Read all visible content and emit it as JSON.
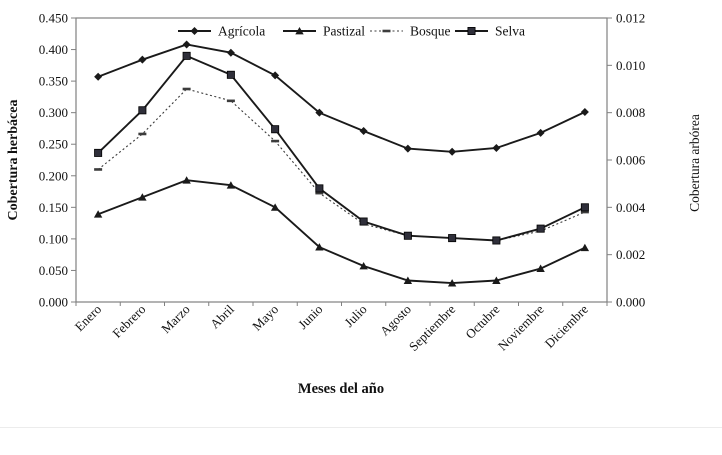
{
  "figure": {
    "background": "#ffffff",
    "axis_color": "#808080",
    "line_color": "#1a1a1a",
    "bosque_color": "#3c3c3c",
    "selva_fill": "#2f2f3a"
  },
  "chart_data": {
    "type": "line",
    "title": "",
    "xlabel": "Meses del año",
    "ylabel_left": "Cobertura herbácea",
    "ylabel_right": "Cobertura arbórea",
    "categories": [
      "Enero",
      "Febrero",
      "Marzo",
      "Abril",
      "Mayo",
      "Junio",
      "Julio",
      "Agosto",
      "Septiembre",
      "Octubre",
      "Noviembre",
      "Diciembre"
    ],
    "left_axis": {
      "min": 0.0,
      "max": 0.45,
      "step": 0.05,
      "tick_labels": [
        "0.450",
        "0.400",
        "0.350",
        "0.300",
        "0.250",
        "0.200",
        "0.150",
        "0.100",
        "0.050",
        "0.000"
      ]
    },
    "right_axis": {
      "min": 0.0,
      "max": 0.012,
      "step": 0.002,
      "tick_labels": [
        "0.012",
        "0.010",
        "0.008",
        "0.006",
        "0.004",
        "0.002",
        "0.000"
      ]
    },
    "grid": false,
    "legend_position": "top-inside",
    "series": [
      {
        "name": "Agrícola",
        "axis": "left",
        "marker": "diamond",
        "line": "solid",
        "values": [
          0.357,
          0.384,
          0.408,
          0.395,
          0.359,
          0.3,
          0.271,
          0.243,
          0.238,
          0.244,
          0.268,
          0.301
        ]
      },
      {
        "name": "Pastizal",
        "axis": "left",
        "marker": "triangle",
        "line": "solid",
        "values": [
          0.139,
          0.166,
          0.193,
          0.185,
          0.15,
          0.087,
          0.057,
          0.034,
          0.03,
          0.034,
          0.053,
          0.086
        ]
      },
      {
        "name": "Bosque",
        "axis": "right",
        "marker": "dash",
        "line": "dotted",
        "values": [
          0.0056,
          0.0071,
          0.009,
          0.0085,
          0.0068,
          0.0046,
          0.0033,
          0.0028,
          0.0027,
          0.0026,
          0.003,
          0.0038
        ]
      },
      {
        "name": "Selva",
        "axis": "right",
        "marker": "square",
        "line": "solid",
        "values": [
          0.0063,
          0.0081,
          0.0104,
          0.0096,
          0.0073,
          0.0048,
          0.0034,
          0.0028,
          0.0027,
          0.0026,
          0.0031,
          0.004
        ]
      }
    ]
  }
}
